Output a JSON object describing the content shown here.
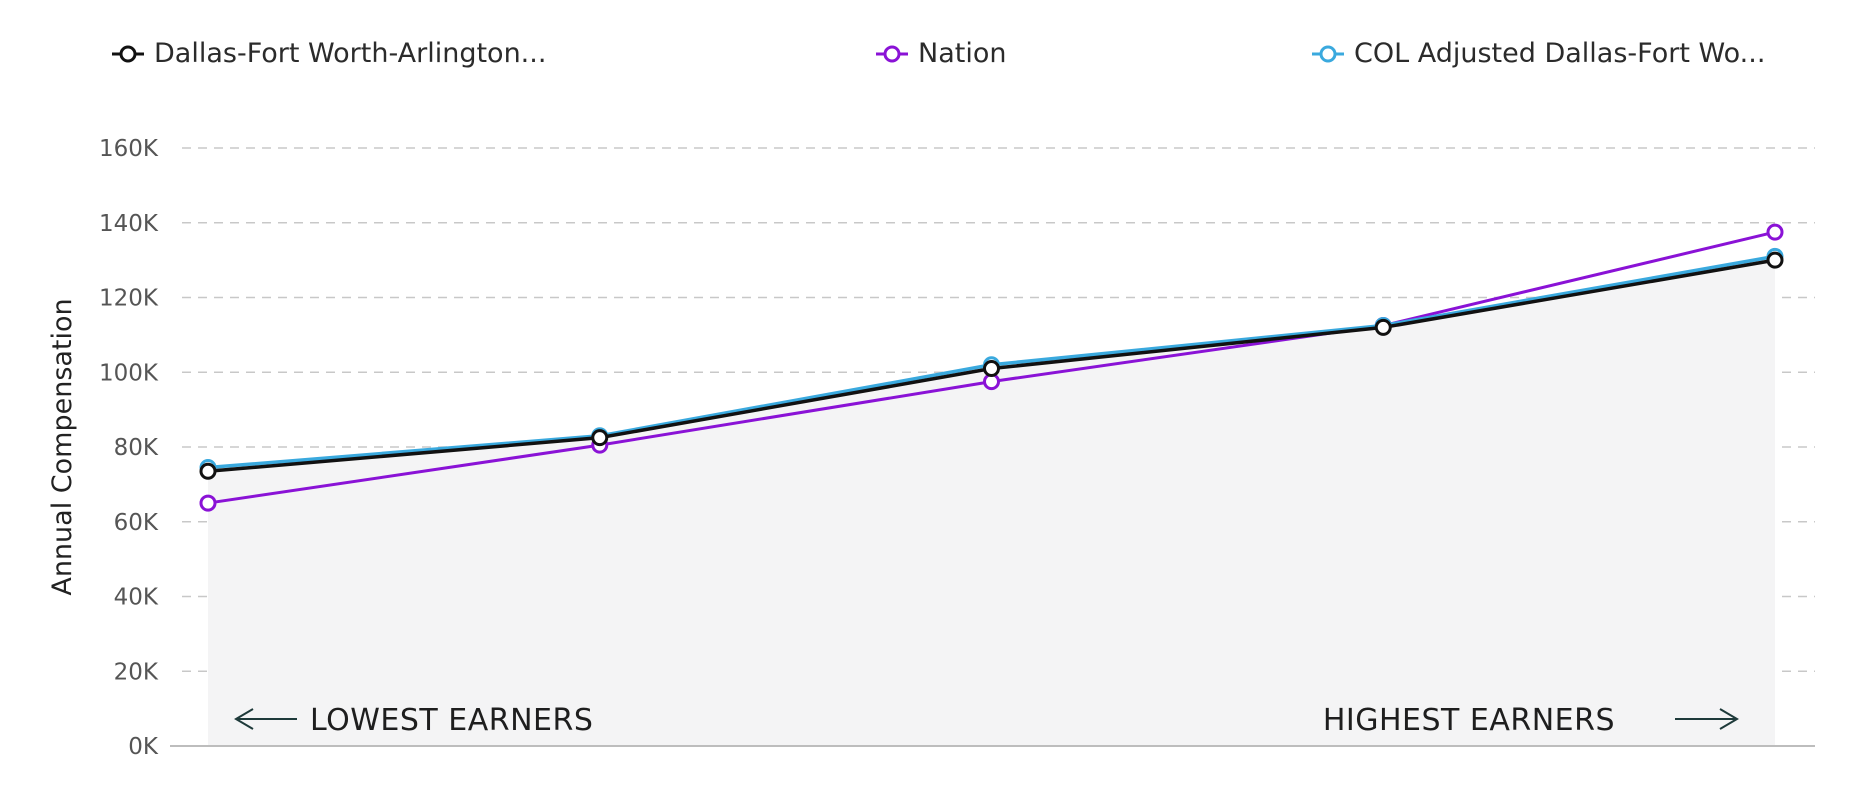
{
  "chart_data": {
    "type": "line",
    "ylabel": "Annual Compensation",
    "ylim": [
      0,
      160000
    ],
    "yticks": [
      {
        "value": 0,
        "label": "0K"
      },
      {
        "value": 20000,
        "label": "20K"
      },
      {
        "value": 40000,
        "label": "40K"
      },
      {
        "value": 60000,
        "label": "60K"
      },
      {
        "value": 80000,
        "label": "80K"
      },
      {
        "value": 100000,
        "label": "100K"
      },
      {
        "value": 120000,
        "label": "120K"
      },
      {
        "value": 140000,
        "label": "140K"
      },
      {
        "value": 160000,
        "label": "160K"
      }
    ],
    "grid": true,
    "legend_placement": "top",
    "series": [
      {
        "name": "Dallas-Fort Worth-Arlington...",
        "color": "#111111",
        "values": [
          73500,
          82500,
          101000,
          112000,
          130000
        ]
      },
      {
        "name": "Nation",
        "color": "#8a12d6",
        "values": [
          65000,
          80500,
          97500,
          112500,
          137500
        ]
      },
      {
        "name": "COL Adjusted Dallas-Fort Wo...",
        "color": "#3aa9de",
        "values": [
          74500,
          83000,
          102000,
          112500,
          131000
        ]
      }
    ],
    "annotations": {
      "left": "LOWEST EARNERS",
      "right": "HIGHEST EARNERS"
    }
  }
}
